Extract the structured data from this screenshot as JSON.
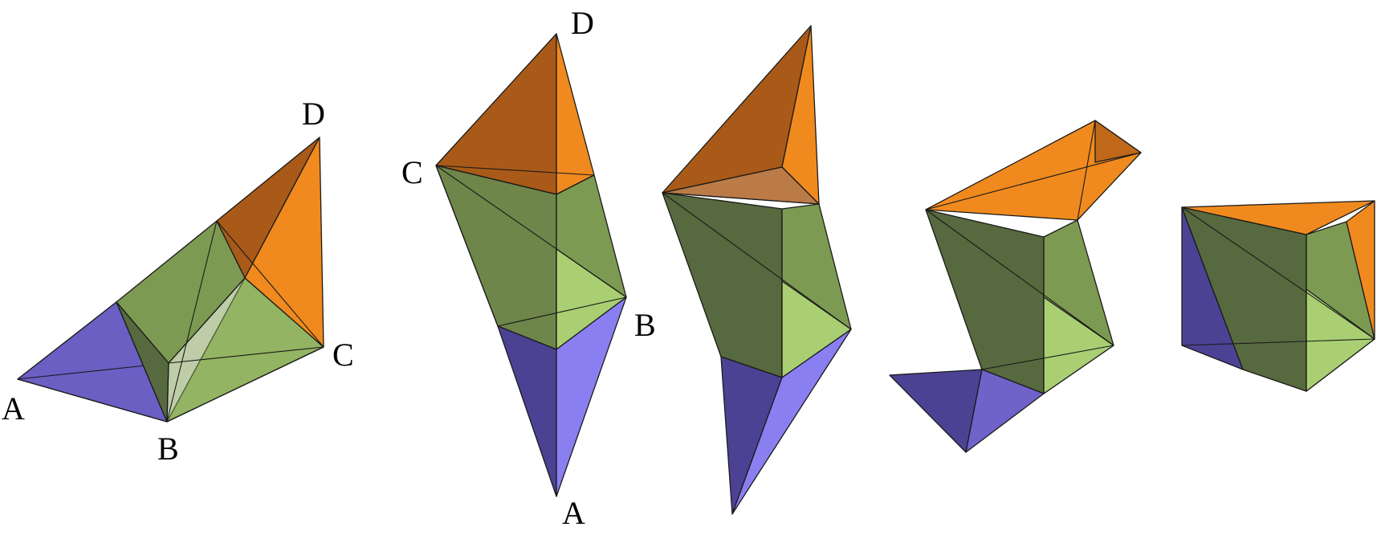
{
  "colors": {
    "purple": "#6f63c9",
    "purple_dark": "#4c4294",
    "purple_light": "#8a7ff0",
    "green": "#7d9a52",
    "green_dark": "#57693e",
    "green_light": "#a9cf72",
    "orange": "#f08a1e",
    "orange_dark": "#a95a18"
  },
  "figures": [
    {
      "name": "figure-1",
      "labels": {
        "A": "A",
        "B": "B",
        "C": "C",
        "D": "D"
      }
    },
    {
      "name": "figure-2",
      "labels": {
        "A": "A",
        "B": "B",
        "C": "C",
        "D": "D"
      }
    },
    {
      "name": "figure-3"
    },
    {
      "name": "figure-4"
    },
    {
      "name": "figure-5"
    }
  ]
}
